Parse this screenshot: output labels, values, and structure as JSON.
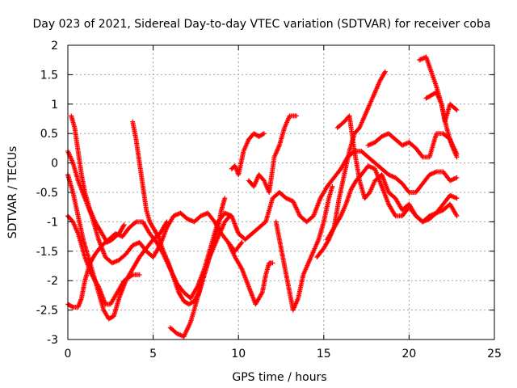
{
  "chart_data": {
    "type": "scatter",
    "title": "Day 023 of 2021, Sidereal Day-to-day VTEC variation (SDTVAR) for receiver coba",
    "xlabel": "GPS time / hours",
    "ylabel": "SDTVAR / TECUs",
    "xlim": [
      0,
      25
    ],
    "ylim": [
      -3,
      2
    ],
    "xticks": [
      "0",
      "5",
      "10",
      "15",
      "20",
      "25"
    ],
    "yticks": [
      "-3",
      "-2.5",
      "-2",
      "-1.5",
      "-1",
      "-0.5",
      "0",
      "0.5",
      "1",
      "1.5",
      "2"
    ],
    "grid": true,
    "marker": "plus",
    "marker_color": "#ff0000",
    "series": [
      {
        "points": [
          [
            0.0,
            -0.9
          ],
          [
            0.3,
            -1.0
          ],
          [
            0.6,
            -1.2
          ],
          [
            1.0,
            -1.6
          ],
          [
            1.4,
            -1.9
          ],
          [
            1.8,
            -2.1
          ],
          [
            2.2,
            -2.4
          ],
          [
            2.5,
            -2.4
          ],
          [
            2.9,
            -2.2
          ],
          [
            3.3,
            -2.0
          ],
          [
            3.8,
            -1.9
          ],
          [
            4.2,
            -1.9
          ]
        ]
      },
      {
        "points": [
          [
            0.0,
            -2.4
          ],
          [
            0.3,
            -2.45
          ],
          [
            0.6,
            -2.45
          ],
          [
            0.8,
            -2.3
          ],
          [
            1.0,
            -2.0
          ],
          [
            1.3,
            -1.7
          ],
          [
            1.6,
            -1.55
          ],
          [
            2.0,
            -1.4
          ],
          [
            2.4,
            -1.3
          ],
          [
            2.8,
            -1.2
          ],
          [
            3.2,
            -1.25
          ],
          [
            3.6,
            -1.1
          ],
          [
            4.0,
            -1.0
          ],
          [
            4.4,
            -1.0
          ],
          [
            4.8,
            -1.2
          ],
          [
            5.2,
            -1.35
          ],
          [
            5.6,
            -1.55
          ],
          [
            6.0,
            -1.8
          ],
          [
            6.4,
            -2.05
          ],
          [
            6.8,
            -2.2
          ],
          [
            7.2,
            -2.3
          ],
          [
            7.6,
            -2.1
          ],
          [
            8.0,
            -1.8
          ],
          [
            8.4,
            -1.4
          ],
          [
            8.8,
            -1.0
          ],
          [
            9.2,
            -0.85
          ],
          [
            9.6,
            -0.9
          ],
          [
            10.0,
            -1.2
          ],
          [
            10.4,
            -1.3
          ],
          [
            10.8,
            -1.2
          ],
          [
            11.2,
            -1.1
          ],
          [
            11.6,
            -1.0
          ],
          [
            12.0,
            -0.6
          ],
          [
            12.4,
            -0.5
          ],
          [
            12.8,
            -0.6
          ],
          [
            13.2,
            -0.65
          ],
          [
            13.6,
            -0.9
          ],
          [
            14.0,
            -1.0
          ],
          [
            14.4,
            -0.9
          ],
          [
            14.8,
            -0.6
          ],
          [
            15.2,
            -0.4
          ],
          [
            15.6,
            -0.25
          ],
          [
            16.0,
            -0.1
          ],
          [
            16.4,
            0.1
          ],
          [
            16.8,
            0.2
          ],
          [
            17.2,
            0.2
          ],
          [
            17.6,
            0.1
          ],
          [
            18.0,
            0.0
          ],
          [
            18.4,
            -0.1
          ],
          [
            18.8,
            -0.2
          ],
          [
            19.2,
            -0.25
          ],
          [
            19.6,
            -0.35
          ],
          [
            20.0,
            -0.5
          ],
          [
            20.4,
            -0.5
          ],
          [
            20.8,
            -0.35
          ],
          [
            21.2,
            -0.2
          ],
          [
            21.6,
            -0.15
          ],
          [
            22.0,
            -0.15
          ],
          [
            22.4,
            -0.3
          ],
          [
            22.8,
            -0.25
          ]
        ]
      },
      {
        "points": [
          [
            0.0,
            0.2
          ],
          [
            0.3,
            0.0
          ],
          [
            0.6,
            -0.3
          ],
          [
            1.0,
            -0.6
          ],
          [
            1.4,
            -0.9
          ],
          [
            1.8,
            -1.3
          ],
          [
            2.2,
            -1.6
          ],
          [
            2.6,
            -1.7
          ],
          [
            3.0,
            -1.65
          ],
          [
            3.4,
            -1.55
          ],
          [
            3.8,
            -1.4
          ],
          [
            4.2,
            -1.35
          ],
          [
            4.6,
            -1.5
          ],
          [
            5.0,
            -1.6
          ],
          [
            5.4,
            -1.4
          ],
          [
            5.8,
            -1.1
          ],
          [
            6.2,
            -0.9
          ],
          [
            6.6,
            -0.85
          ],
          [
            7.0,
            -0.95
          ],
          [
            7.4,
            -1.0
          ],
          [
            7.8,
            -0.9
          ],
          [
            8.2,
            -0.85
          ],
          [
            8.6,
            -1.0
          ],
          [
            9.0,
            -1.2
          ],
          [
            9.4,
            -1.35
          ],
          [
            9.8,
            -1.5
          ],
          [
            10.2,
            -1.35
          ]
        ]
      },
      {
        "points": [
          [
            0.0,
            -0.2
          ],
          [
            0.3,
            -0.5
          ],
          [
            0.6,
            -0.9
          ],
          [
            0.9,
            -1.3
          ],
          [
            1.2,
            -1.6
          ],
          [
            1.5,
            -1.9
          ],
          [
            1.8,
            -2.2
          ],
          [
            2.1,
            -2.5
          ],
          [
            2.4,
            -2.65
          ],
          [
            2.7,
            -2.6
          ],
          [
            3.0,
            -2.3
          ],
          [
            3.4,
            -2.0
          ],
          [
            3.8,
            -1.8
          ],
          [
            4.2,
            -1.6
          ],
          [
            4.6,
            -1.45
          ],
          [
            5.0,
            -1.3
          ],
          [
            5.4,
            -1.2
          ],
          [
            5.8,
            -1.0
          ]
        ]
      },
      {
        "points": [
          [
            0.2,
            0.8
          ],
          [
            0.4,
            0.6
          ],
          [
            0.6,
            0.2
          ],
          [
            0.8,
            -0.2
          ],
          [
            1.0,
            -0.5
          ],
          [
            1.3,
            -0.8
          ],
          [
            1.6,
            -1.0
          ],
          [
            2.0,
            -1.2
          ],
          [
            2.3,
            -1.35
          ],
          [
            2.6,
            -1.3
          ],
          [
            3.0,
            -1.2
          ],
          [
            3.3,
            -1.05
          ]
        ]
      },
      {
        "points": [
          [
            3.8,
            0.7
          ],
          [
            4.0,
            0.4
          ],
          [
            4.2,
            0.0
          ],
          [
            4.4,
            -0.4
          ],
          [
            4.6,
            -0.8
          ],
          [
            4.8,
            -1.0
          ],
          [
            5.0,
            -1.1
          ],
          [
            5.3,
            -1.25
          ],
          [
            5.6,
            -1.5
          ],
          [
            5.9,
            -1.7
          ],
          [
            6.2,
            -1.95
          ],
          [
            6.5,
            -2.2
          ],
          [
            6.8,
            -2.35
          ],
          [
            7.1,
            -2.4
          ],
          [
            7.4,
            -2.35
          ],
          [
            7.7,
            -2.2
          ],
          [
            8.0,
            -1.9
          ],
          [
            8.3,
            -1.6
          ],
          [
            8.6,
            -1.4
          ],
          [
            8.9,
            -1.2
          ],
          [
            9.2,
            -1.0
          ],
          [
            9.5,
            -0.9
          ]
        ]
      },
      {
        "points": [
          [
            6.0,
            -2.8
          ],
          [
            6.4,
            -2.9
          ],
          [
            6.8,
            -2.95
          ],
          [
            7.2,
            -2.7
          ],
          [
            7.6,
            -2.3
          ],
          [
            8.0,
            -1.9
          ],
          [
            8.4,
            -1.5
          ],
          [
            8.8,
            -1.1
          ],
          [
            9.0,
            -0.8
          ],
          [
            9.2,
            -0.6
          ]
        ]
      },
      {
        "points": [
          [
            9.4,
            -1.35
          ],
          [
            9.8,
            -1.6
          ],
          [
            10.2,
            -1.8
          ],
          [
            10.6,
            -2.1
          ],
          [
            11.0,
            -2.4
          ],
          [
            11.4,
            -2.2
          ],
          [
            11.6,
            -1.9
          ],
          [
            11.8,
            -1.7
          ],
          [
            12.0,
            -1.7
          ]
        ]
      },
      {
        "points": [
          [
            9.6,
            -0.1
          ],
          [
            9.8,
            -0.05
          ],
          [
            10.0,
            -0.2
          ],
          [
            10.3,
            0.2
          ],
          [
            10.6,
            0.4
          ],
          [
            10.9,
            0.5
          ],
          [
            11.2,
            0.45
          ],
          [
            11.5,
            0.5
          ]
        ]
      },
      {
        "points": [
          [
            10.6,
            -0.3
          ],
          [
            10.9,
            -0.4
          ],
          [
            11.2,
            -0.2
          ],
          [
            11.5,
            -0.3
          ],
          [
            11.8,
            -0.5
          ],
          [
            12.1,
            0.1
          ],
          [
            12.4,
            0.3
          ],
          [
            12.7,
            0.6
          ],
          [
            13.0,
            0.8
          ],
          [
            13.4,
            0.8
          ]
        ]
      },
      {
        "points": [
          [
            12.2,
            -1.0
          ],
          [
            12.4,
            -1.3
          ],
          [
            12.6,
            -1.6
          ],
          [
            12.8,
            -1.9
          ],
          [
            13.0,
            -2.2
          ],
          [
            13.2,
            -2.5
          ],
          [
            13.5,
            -2.3
          ],
          [
            13.8,
            -1.9
          ],
          [
            14.1,
            -1.7
          ],
          [
            14.4,
            -1.5
          ],
          [
            14.7,
            -1.3
          ],
          [
            15.0,
            -1.0
          ],
          [
            15.3,
            -0.6
          ],
          [
            15.5,
            -0.4
          ]
        ]
      },
      {
        "points": [
          [
            14.6,
            -1.6
          ],
          [
            15.0,
            -1.45
          ],
          [
            15.3,
            -1.3
          ],
          [
            15.6,
            -1.1
          ],
          [
            15.9,
            -0.6
          ],
          [
            16.2,
            -0.2
          ],
          [
            16.5,
            0.2
          ],
          [
            16.8,
            0.5
          ],
          [
            17.1,
            0.6
          ],
          [
            17.4,
            0.8
          ],
          [
            17.7,
            1.0
          ],
          [
            18.0,
            1.2
          ],
          [
            18.3,
            1.4
          ],
          [
            18.6,
            1.55
          ]
        ]
      },
      {
        "points": [
          [
            15.2,
            -1.3
          ],
          [
            15.6,
            -1.1
          ],
          [
            16.0,
            -0.9
          ],
          [
            16.3,
            -0.7
          ],
          [
            16.6,
            -0.45
          ],
          [
            16.9,
            -0.3
          ],
          [
            17.2,
            -0.2
          ],
          [
            17.6,
            -0.05
          ],
          [
            18.0,
            -0.1
          ],
          [
            18.4,
            -0.4
          ],
          [
            18.8,
            -0.7
          ],
          [
            19.2,
            -0.9
          ],
          [
            19.6,
            -0.9
          ],
          [
            20.0,
            -0.75
          ],
          [
            20.4,
            -0.9
          ],
          [
            20.8,
            -1.0
          ],
          [
            21.2,
            -0.95
          ],
          [
            21.6,
            -0.85
          ],
          [
            22.0,
            -0.8
          ],
          [
            22.4,
            -0.7
          ],
          [
            22.8,
            -0.9
          ]
        ]
      },
      {
        "points": [
          [
            15.8,
            0.6
          ],
          [
            16.2,
            0.7
          ],
          [
            16.5,
            0.8
          ],
          [
            16.8,
            0.2
          ],
          [
            17.1,
            -0.3
          ],
          [
            17.4,
            -0.6
          ],
          [
            17.7,
            -0.5
          ],
          [
            18.0,
            -0.3
          ],
          [
            18.4,
            -0.2
          ],
          [
            18.8,
            -0.5
          ],
          [
            19.2,
            -0.6
          ],
          [
            19.6,
            -0.8
          ],
          [
            20.0,
            -0.7
          ],
          [
            20.4,
            -0.9
          ],
          [
            20.8,
            -1.0
          ],
          [
            21.2,
            -0.9
          ],
          [
            21.6,
            -0.85
          ],
          [
            22.0,
            -0.7
          ],
          [
            22.4,
            -0.55
          ],
          [
            22.8,
            -0.6
          ]
        ]
      },
      {
        "points": [
          [
            17.6,
            0.3
          ],
          [
            18.0,
            0.35
          ],
          [
            18.4,
            0.45
          ],
          [
            18.8,
            0.5
          ],
          [
            19.2,
            0.4
          ],
          [
            19.6,
            0.3
          ],
          [
            20.0,
            0.35
          ],
          [
            20.4,
            0.25
          ],
          [
            20.8,
            0.1
          ],
          [
            21.2,
            0.1
          ],
          [
            21.6,
            0.5
          ],
          [
            22.0,
            0.5
          ],
          [
            22.4,
            0.4
          ],
          [
            22.8,
            0.15
          ]
        ]
      },
      {
        "points": [
          [
            20.6,
            1.75
          ],
          [
            21.0,
            1.8
          ],
          [
            21.3,
            1.55
          ],
          [
            21.6,
            1.3
          ],
          [
            21.9,
            1.0
          ],
          [
            22.2,
            0.6
          ],
          [
            22.5,
            0.3
          ],
          [
            22.8,
            0.1
          ]
        ]
      },
      {
        "points": [
          [
            21.0,
            1.1
          ],
          [
            21.3,
            1.15
          ],
          [
            21.6,
            1.2
          ],
          [
            21.9,
            1.0
          ],
          [
            22.1,
            0.7
          ],
          [
            22.4,
            1.0
          ],
          [
            22.8,
            0.9
          ]
        ]
      }
    ]
  }
}
